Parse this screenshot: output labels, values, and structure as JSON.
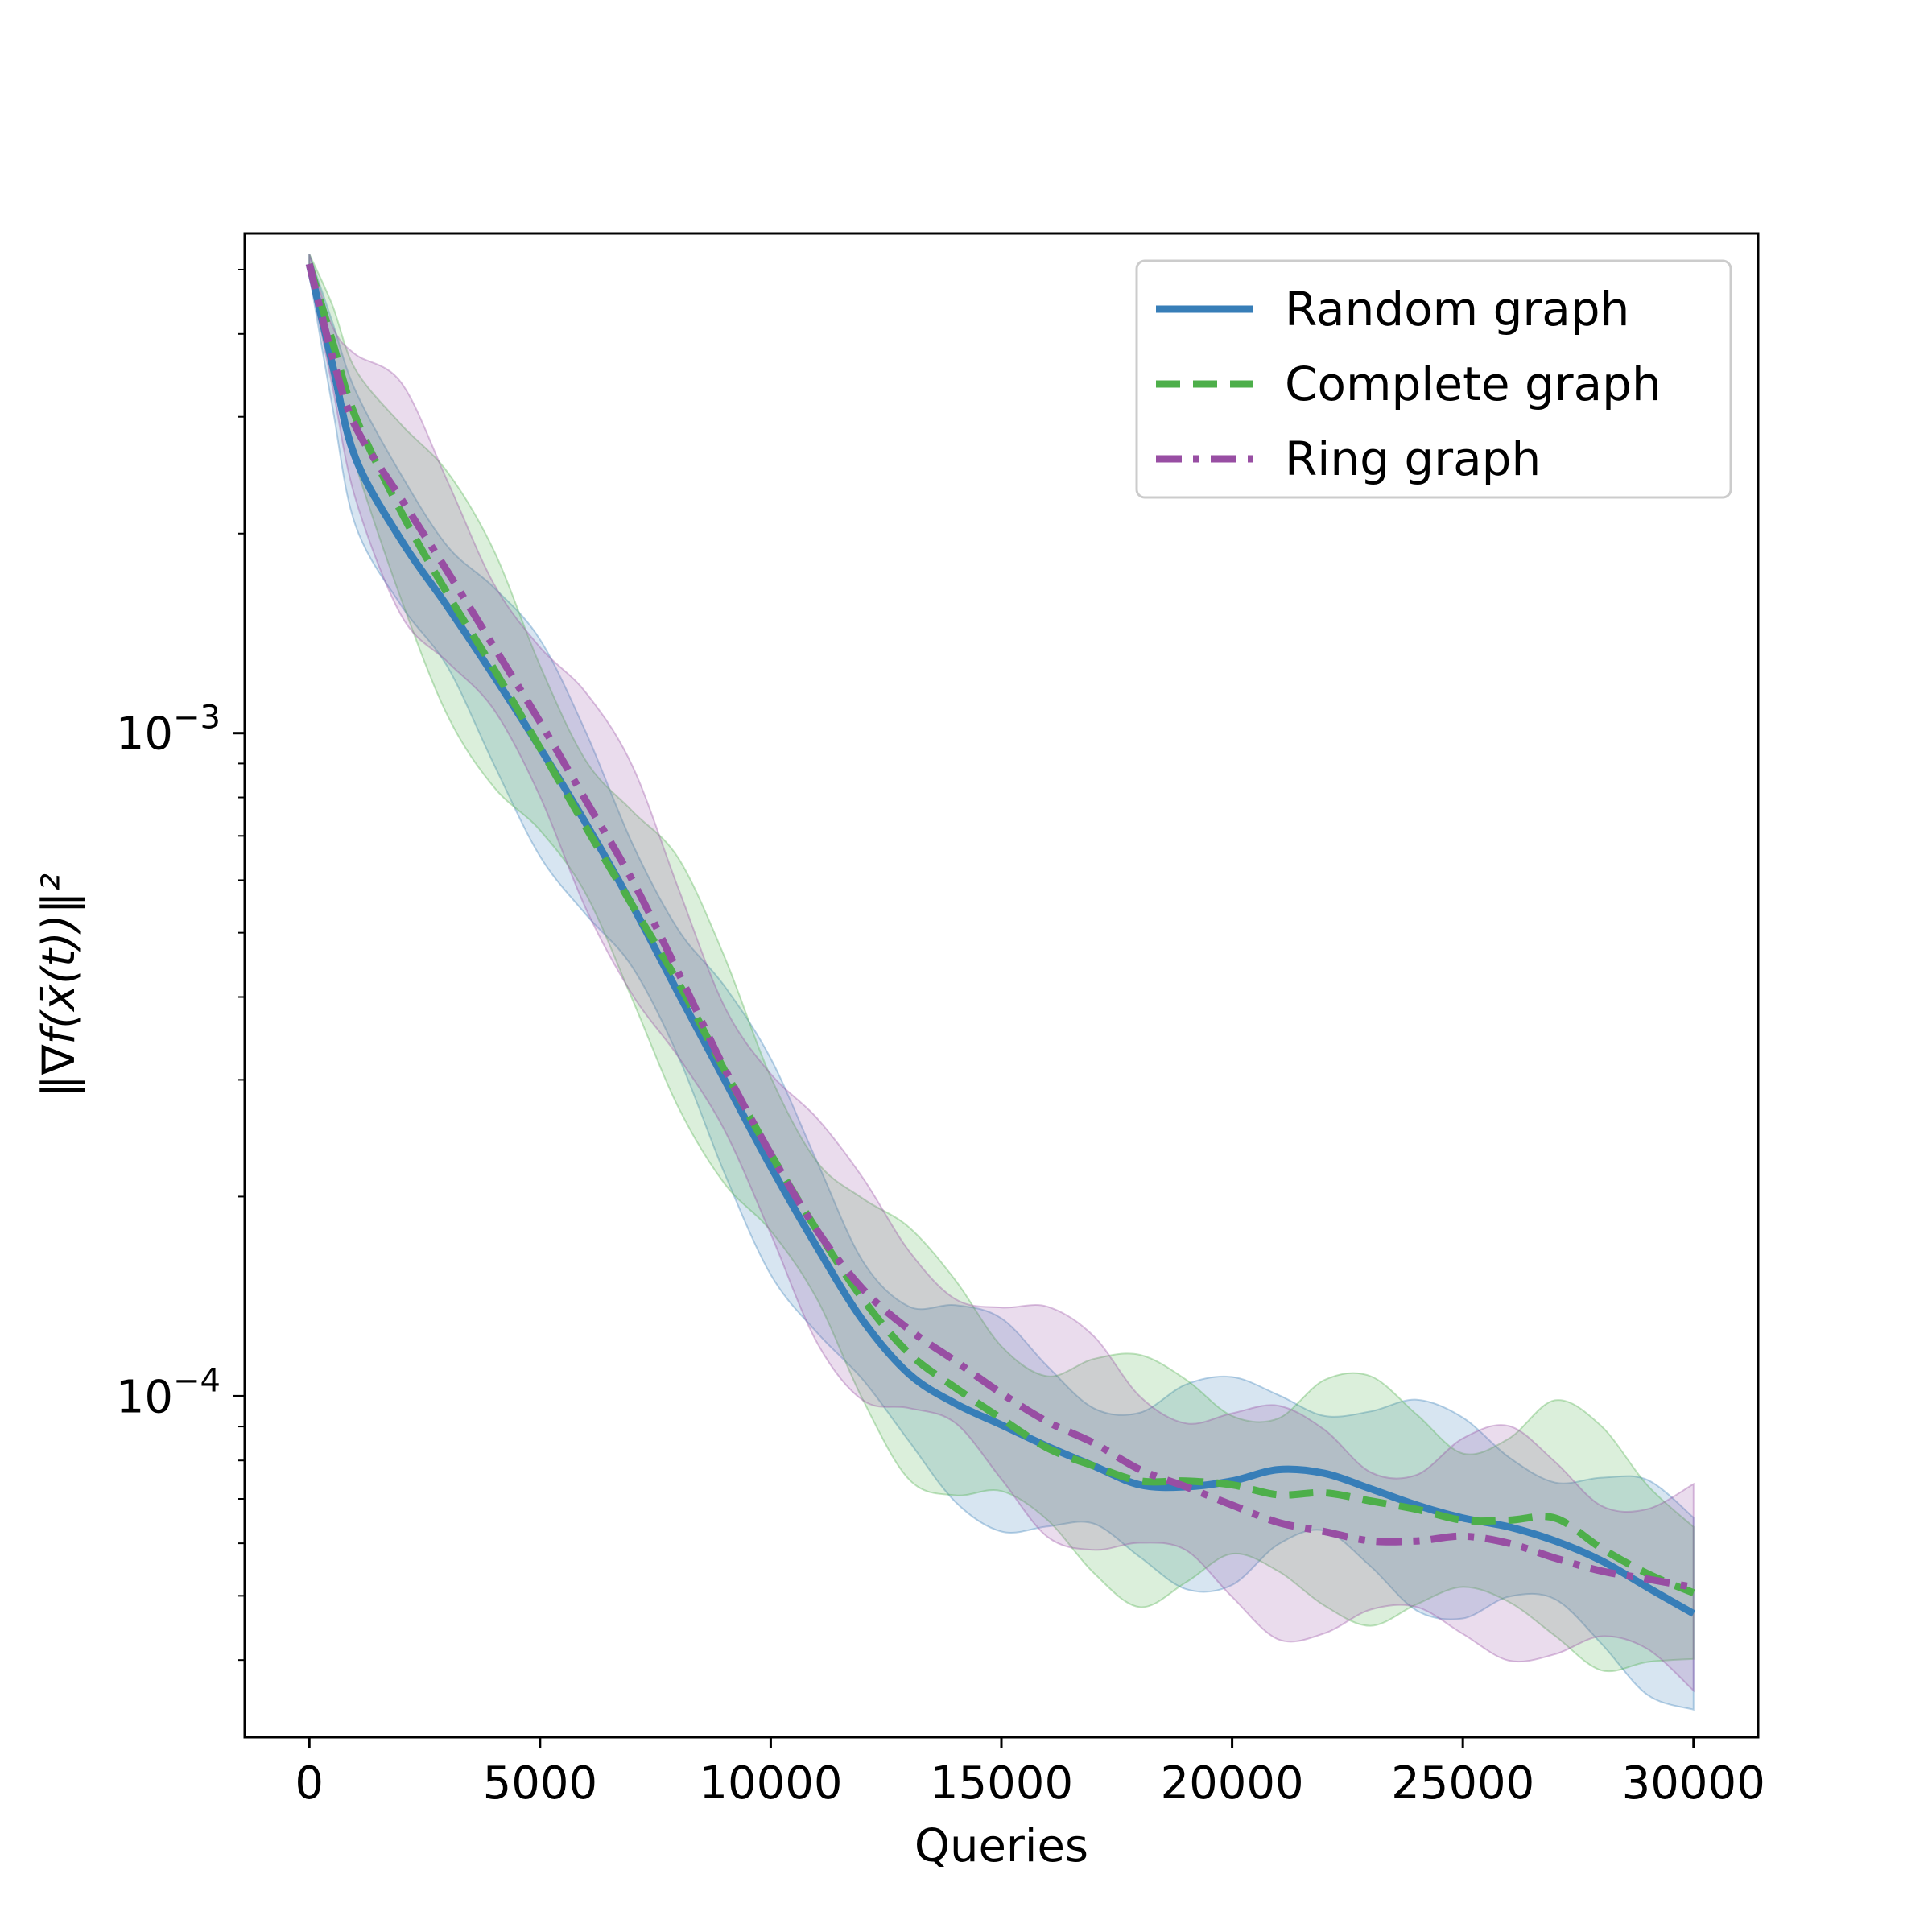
{
  "chart_data": {
    "type": "line",
    "xlabel": "Queries",
    "ylabel": "‖∇f(x̄(t))‖²",
    "xlim": [
      -1400,
      31400
    ],
    "ylim": [
      3.06e-05,
      0.00567
    ],
    "yscale": "log",
    "xticks": [
      0,
      5000,
      10000,
      15000,
      20000,
      25000,
      30000
    ],
    "xtick_labels": [
      "0",
      "5000",
      "10000",
      "15000",
      "20000",
      "25000",
      "30000"
    ],
    "yticks": [
      0.001,
      0.0001
    ],
    "ytick_base": "10",
    "ytick_exponents": [
      "−3",
      "−4"
    ],
    "grid": false,
    "legend_position": "top-right",
    "series": [
      {
        "name": "Random graph",
        "color": "#377eb8",
        "style": "solid",
        "x": [
          0,
          500,
          1000,
          2000,
          3000,
          4000,
          5000,
          6000,
          7000,
          8000,
          9000,
          10000,
          11000,
          12000,
          13000,
          14000,
          15000,
          16000,
          17000,
          18000,
          19000,
          20000,
          21000,
          22000,
          23000,
          24000,
          25000,
          26000,
          27000,
          28000,
          29000,
          30000
        ],
        "y": [
          0.0051,
          0.0036,
          0.0026,
          0.00195,
          0.00155,
          0.00122,
          0.00095,
          0.00073,
          0.00055,
          0.000405,
          0.0003,
          0.000222,
          0.000168,
          0.00013,
          0.000108,
          9.75e-05,
          9.05e-05,
          8.4e-05,
          7.85e-05,
          7.35e-05,
          7.3e-05,
          7.45e-05,
          7.75e-05,
          7.65e-05,
          7.25e-05,
          6.85e-05,
          6.55e-05,
          6.35e-05,
          6.05e-05,
          5.65e-05,
          5.15e-05,
          4.7e-05
        ]
      },
      {
        "name": "Complete graph",
        "color": "#4daf4a",
        "style": "dashed",
        "x": [
          0,
          500,
          1000,
          2000,
          3000,
          4000,
          5000,
          6000,
          7000,
          8000,
          9000,
          10000,
          11000,
          12000,
          13000,
          14000,
          15000,
          16000,
          17000,
          18000,
          19000,
          20000,
          21000,
          22000,
          23000,
          24000,
          25000,
          26000,
          27000,
          28000,
          29000,
          30000
        ],
        "y": [
          0.0051,
          0.0039,
          0.003,
          0.00215,
          0.00162,
          0.00125,
          0.00095,
          0.00072,
          0.00055,
          0.00042,
          0.00031,
          0.000232,
          0.000178,
          0.00014,
          0.000116,
          0.000103,
          9.25e-05,
          8.35e-05,
          7.85e-05,
          7.45e-05,
          7.45e-05,
          7.35e-05,
          7.1e-05,
          7.15e-05,
          6.95e-05,
          6.75e-05,
          6.5e-05,
          6.5e-05,
          6.55e-05,
          5.9e-05,
          5.4e-05,
          5.05e-05
        ]
      },
      {
        "name": "Ring graph",
        "color": "#984ea3",
        "style": "dashdot",
        "x": [
          0,
          500,
          1000,
          2000,
          3000,
          4000,
          5000,
          6000,
          7000,
          8000,
          9000,
          10000,
          11000,
          12000,
          13000,
          14000,
          15000,
          16000,
          17000,
          18000,
          19000,
          20000,
          21000,
          22000,
          23000,
          24000,
          25000,
          26000,
          27000,
          28000,
          29000,
          30000
        ],
        "y": [
          0.0051,
          0.0037,
          0.0029,
          0.00225,
          0.00175,
          0.00135,
          0.00104,
          0.00079,
          0.0006,
          0.000435,
          0.000312,
          0.000232,
          0.000178,
          0.000145,
          0.000126,
          0.000113,
          0.000101,
          9.15e-05,
          8.5e-05,
          7.75e-05,
          7.3e-05,
          6.85e-05,
          6.45e-05,
          6.25e-05,
          6.05e-05,
          6.05e-05,
          6.15e-05,
          6e-05,
          5.7e-05,
          5.45e-05,
          5.3e-05,
          5.15e-05
        ]
      }
    ]
  }
}
